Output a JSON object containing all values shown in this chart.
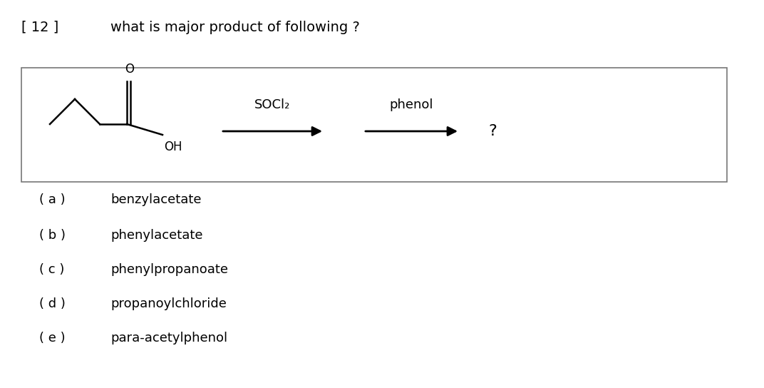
{
  "title_number": "[ 12 ]",
  "title_question": "what is major product of following ?",
  "reagent1": "SOCl₂",
  "reagent2": "phenol",
  "question_mark": "?",
  "options": [
    {
      "label": "( a )",
      "text": "benzylacetate"
    },
    {
      "label": "( b )",
      "text": "phenylacetate"
    },
    {
      "label": "( c )",
      "text": "phenylpropanoate"
    },
    {
      "label": "( d )",
      "text": "propanoylchloride"
    },
    {
      "label": "( e )",
      "text": "para-acetylphenol"
    }
  ],
  "bg_color": "#ffffff",
  "text_color": "#000000",
  "fontsize_title": 14,
  "fontsize_options": 13,
  "fontsize_reagents": 13,
  "fontsize_struct": 12
}
